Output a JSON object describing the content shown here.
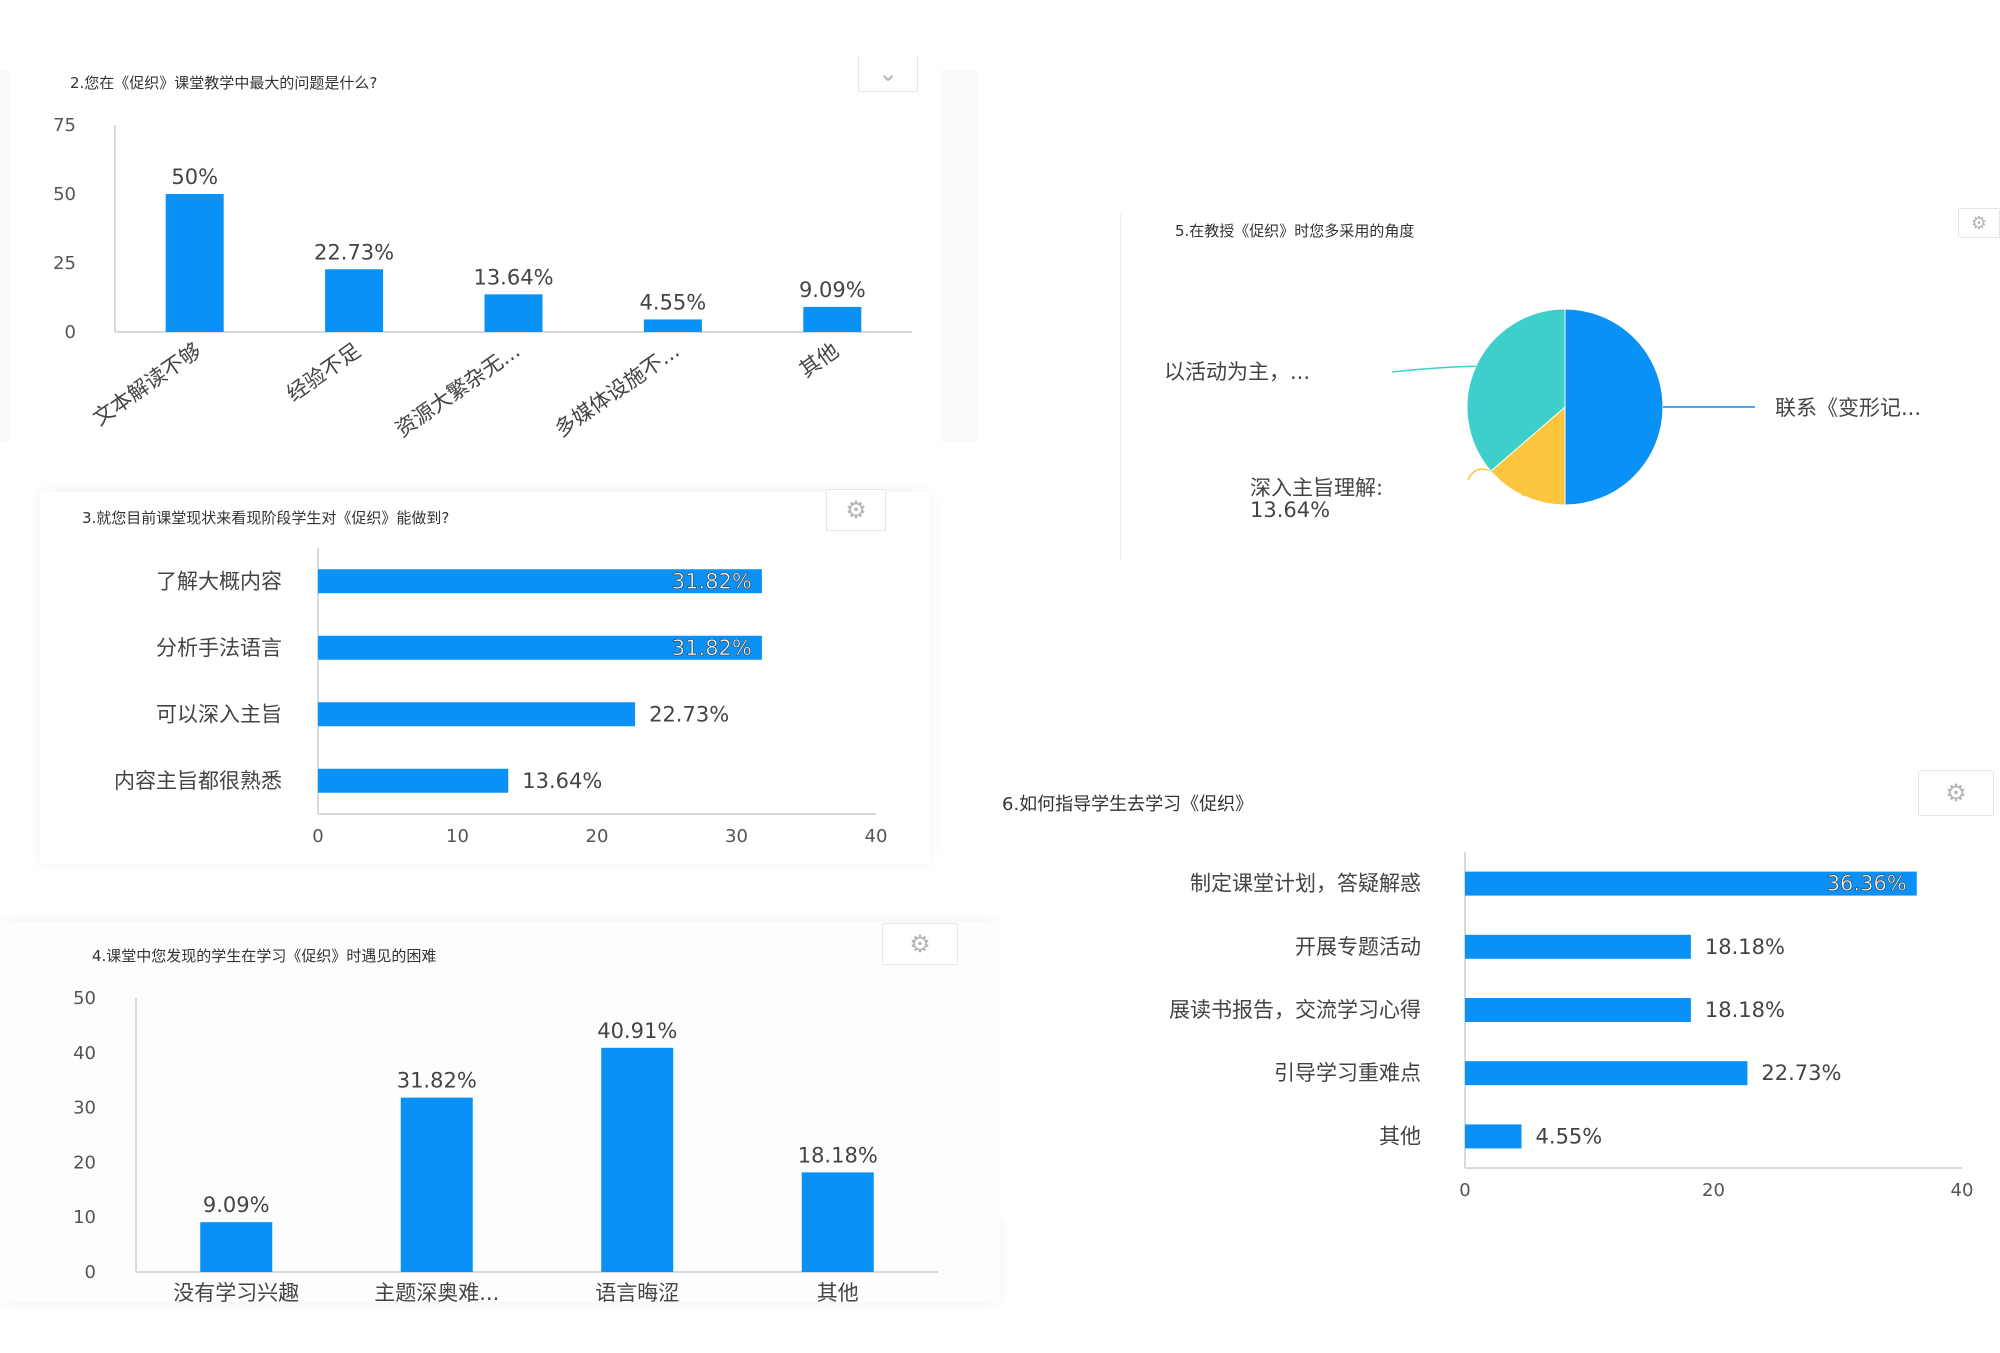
{
  "chart_data": [
    {
      "id": "q2",
      "type": "bar",
      "title": "2.您在《促织》课堂教学中最大的问题是什么?",
      "categories": [
        "文本解读不够",
        "经验不足",
        "资源大繁杂无...",
        "多媒体设施不...",
        "其他"
      ],
      "values": [
        50,
        22.73,
        13.64,
        4.55,
        9.09
      ],
      "data_labels": [
        "50%",
        "22.73%",
        "13.64%",
        "4.55%",
        "9.09%"
      ],
      "yticks": [
        0,
        25,
        50,
        75
      ],
      "ylim": [
        0,
        75
      ],
      "color": "#0a91f5"
    },
    {
      "id": "q3",
      "type": "bar",
      "orientation": "horizontal",
      "title": "3.就您目前课堂现状来看现阶段学生对《促织》能做到?",
      "categories": [
        "了解大概内容",
        "分析手法语言",
        "可以深入主旨",
        "内容主旨都很熟悉"
      ],
      "values": [
        31.82,
        31.82,
        22.73,
        13.64
      ],
      "data_labels": [
        "31.82%",
        "31.82%",
        "22.73%",
        "13.64%"
      ],
      "xticks": [
        0,
        10,
        20,
        30,
        40
      ],
      "xlim": [
        0,
        40
      ],
      "color": "#0a91f5"
    },
    {
      "id": "q4",
      "type": "bar",
      "title": "4.课堂中您发现的学生在学习《促织》时遇见的困难",
      "categories": [
        "没有学习兴趣",
        "主题深奥难...",
        "语言晦涩",
        "其他"
      ],
      "values": [
        9.09,
        31.82,
        40.91,
        18.18
      ],
      "data_labels": [
        "9.09%",
        "31.82%",
        "40.91%",
        "18.18%"
      ],
      "yticks": [
        0,
        10,
        20,
        30,
        40,
        50
      ],
      "ylim": [
        0,
        50
      ],
      "color": "#0a91f5"
    },
    {
      "id": "q5",
      "type": "pie",
      "title": "5.在教授《促织》时您多采用的角度",
      "slices": [
        {
          "label": "联系《变形记...",
          "value": 50,
          "color": "#0a91f5"
        },
        {
          "label": "深入主旨理解: 13.64%",
          "value": 13.64,
          "color": "#fbc53d"
        },
        {
          "label": "以活动为主，...",
          "value": 36.36,
          "color": "#3ecfcb"
        }
      ]
    },
    {
      "id": "q6",
      "type": "bar",
      "orientation": "horizontal",
      "title": "6.如何指导学生去学习《促织》",
      "categories": [
        "制定课堂计划，答疑解惑",
        "开展专题活动",
        "展读书报告，交流学习心得",
        "引导学习重难点",
        "其他"
      ],
      "values": [
        36.36,
        18.18,
        18.18,
        22.73,
        4.55
      ],
      "data_labels": [
        "36.36%",
        "18.18%",
        "18.18%",
        "22.73%",
        "4.55%"
      ],
      "xticks": [
        0,
        20,
        40
      ],
      "xlim": [
        0,
        40
      ],
      "color": "#0a91f5"
    }
  ],
  "ui": {
    "chevron_icon": "chevron-down-icon",
    "gear_icon": "gear-icon"
  }
}
